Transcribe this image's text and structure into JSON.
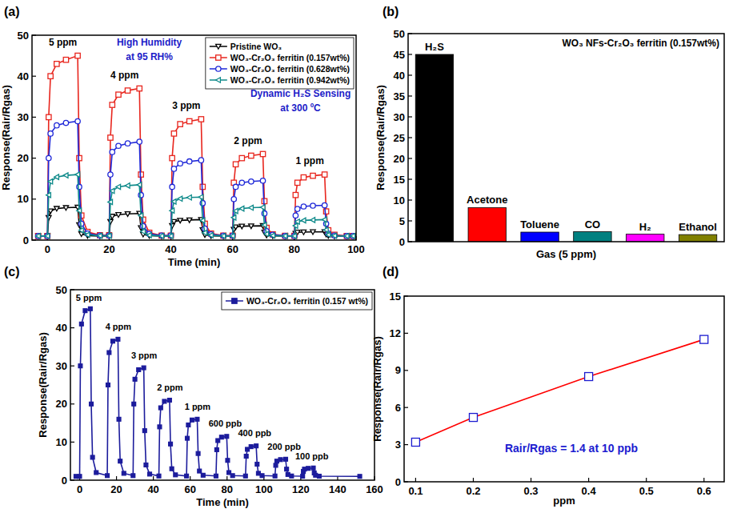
{
  "chart_data": [
    {
      "type": "line",
      "title": "(a)",
      "xlabel": "Time (min)",
      "ylabel": "Response(Rair/Rgas)",
      "xlim": [
        -5,
        100
      ],
      "ylim": [
        0,
        50
      ],
      "xticks": [
        0,
        20,
        40,
        60,
        80,
        100
      ],
      "yticks": [
        0,
        10,
        20,
        30,
        40,
        50
      ],
      "legend": "upper right",
      "x": [
        -3,
        0,
        0.4,
        1,
        3,
        6,
        9.8,
        10.3,
        11,
        13,
        17,
        20,
        20.4,
        21,
        23,
        26,
        29.8,
        30.3,
        31,
        33,
        37,
        40,
        40.4,
        41,
        43,
        46,
        49.8,
        50.3,
        51,
        53,
        57,
        60,
        60.4,
        61,
        63,
        66,
        69.8,
        70.3,
        71,
        73,
        77,
        80,
        80.4,
        81,
        83,
        86,
        89.8,
        90.3,
        91,
        93,
        97,
        99
      ],
      "series": [
        {
          "name": "Pristine WO₃",
          "color": "#000000",
          "marker": "open-triangle-down",
          "values": [
            1,
            1,
            5.5,
            7.1,
            7.7,
            7.9,
            8,
            3.7,
            1.5,
            1.1,
            1.0,
            1.0,
            4.5,
            5.8,
            6.2,
            6.4,
            6.5,
            3,
            1.4,
            1.1,
            1.0,
            1.0,
            3.5,
            4.5,
            4.8,
            4.9,
            5,
            2.5,
            1.3,
            1.05,
            1.0,
            1.0,
            2.6,
            3.2,
            3.4,
            3.45,
            3.5,
            1.9,
            1.2,
            1.05,
            1.0,
            1.0,
            1.6,
            1.9,
            1.95,
            2,
            2,
            1.4,
            1.1,
            1.0,
            1.0,
            1.0
          ]
        },
        {
          "name": "WO₃-Cr₂O₃ ferritin (0.157wt%)",
          "color": "#e8261e",
          "marker": "open-square",
          "values": [
            1,
            1,
            30,
            40,
            43,
            44,
            45,
            20,
            6,
            2,
            1.2,
            1.2,
            25,
            33,
            35.5,
            36.5,
            37,
            16,
            5,
            1.8,
            1.1,
            1.1,
            20,
            26,
            28.3,
            29,
            29.5,
            13,
            4,
            1.6,
            1.1,
            1.1,
            14,
            18.5,
            20,
            20.6,
            21,
            9.5,
            3,
            1.4,
            1.05,
            1.05,
            11,
            14,
            15.3,
            15.7,
            16,
            7,
            2.4,
            1.3,
            1.0,
            1.0
          ]
        },
        {
          "name": "WO₃-Cr₂O₃ ferritin (0.628wt%)",
          "color": "#1f28d8",
          "marker": "open-circle",
          "values": [
            1,
            1,
            20,
            26,
            28,
            28.6,
            29,
            13,
            4,
            1.6,
            1.1,
            1.1,
            16,
            21.5,
            23,
            23.6,
            24,
            11,
            3.4,
            1.5,
            1.1,
            1.1,
            13,
            17.4,
            18.7,
            19.2,
            19.5,
            9,
            2.8,
            1.4,
            1.05,
            1.05,
            10,
            13,
            14,
            14.3,
            14.5,
            6.5,
            2.2,
            1.3,
            1.0,
            1.0,
            6,
            7.6,
            8.2,
            8.4,
            8.5,
            4,
            1.6,
            1.1,
            1.0,
            1.0
          ]
        },
        {
          "name": "WO₃-Cr₂O₃ ferritin (0.942wt%)",
          "color": "#0e8a8a",
          "marker": "open-triangle-left",
          "values": [
            1,
            1,
            11,
            14.3,
            15.4,
            15.8,
            16,
            7.2,
            2.4,
            1.3,
            1.05,
            1.05,
            9.3,
            12,
            13,
            13.3,
            13.5,
            6,
            2.1,
            1.2,
            1.0,
            1.0,
            7.2,
            9.4,
            10.1,
            10.4,
            10.5,
            4.8,
            1.8,
            1.2,
            1.0,
            1.0,
            5.5,
            7.1,
            7.7,
            7.9,
            8,
            3.7,
            1.5,
            1.1,
            1.0,
            1.0,
            3.5,
            4.5,
            4.8,
            4.9,
            5,
            2.5,
            1.3,
            1.05,
            1.0,
            1.0
          ]
        }
      ],
      "annotations": [
        {
          "text": "5 ppm",
          "x": 5,
          "y": 47.5
        },
        {
          "text": "4 ppm",
          "x": 25,
          "y": 39.5
        },
        {
          "text": "3 ppm",
          "x": 45,
          "y": 32
        },
        {
          "text": "2 ppm",
          "x": 65,
          "y": 23.5
        },
        {
          "text": "1 ppm",
          "x": 85,
          "y": 18.5
        },
        {
          "text": "High Humidity",
          "x": 33,
          "y": 47.5,
          "color": "#1c1cc8"
        },
        {
          "text": "at 95 RH%",
          "x": 33,
          "y": 44,
          "color": "#1c1cc8"
        },
        {
          "text": "Dynamic H₂S Sensing",
          "x": 82,
          "y": 35,
          "color": "#1c1cc8"
        },
        {
          "text": "at 300 ºC",
          "x": 82,
          "y": 31.5,
          "color": "#1c1cc8"
        }
      ]
    },
    {
      "type": "bar",
      "title": "(b)",
      "subtitle": "WO₃ NFs-Cr₂O₃ ferritin (0.157wt%)",
      "xlabel": "Gas (5 ppm)",
      "ylabel": "Response(Rair/Rgas)",
      "categories": [
        "H₂S",
        "Acetone",
        "Toluene",
        "CO",
        "H₂",
        "Ethanol"
      ],
      "values": [
        45,
        8.2,
        2.3,
        2.4,
        1.8,
        1.7
      ],
      "colors": [
        "#000000",
        "#ff0000",
        "#0000ff",
        "#008080",
        "#ff00ff",
        "#808000"
      ],
      "ylim": [
        0,
        50
      ],
      "yticks": [
        0,
        5,
        10,
        15,
        20,
        25,
        30,
        35,
        40,
        45,
        50
      ]
    },
    {
      "type": "line",
      "title": "(c)",
      "xlabel": "Time (min)",
      "ylabel": "Response(Rair/Rgas)",
      "xlim": [
        -5,
        160
      ],
      "ylim": [
        0,
        50
      ],
      "xticks": [
        0,
        20,
        40,
        60,
        80,
        100,
        120,
        140,
        160
      ],
      "yticks": [
        0,
        10,
        20,
        30,
        40,
        50
      ],
      "legend": "upper right",
      "x": [
        -2,
        0,
        0.4,
        1,
        3,
        5.8,
        6.3,
        7,
        9,
        15,
        15.4,
        16,
        18,
        20.8,
        21.3,
        22,
        24,
        29,
        29.4,
        30,
        32,
        34.8,
        35.3,
        36,
        38,
        43,
        43.4,
        44,
        46,
        48.8,
        49.3,
        50,
        52,
        58,
        58.4,
        59,
        61,
        63.8,
        64.3,
        65,
        67,
        74,
        74.4,
        75,
        77,
        79.8,
        80.3,
        81,
        83,
        90,
        90.4,
        91,
        93,
        95.8,
        96.3,
        97,
        99,
        106,
        106.4,
        107,
        109,
        111.8,
        112.3,
        113,
        115,
        121,
        121.4,
        122,
        124,
        126.8,
        127.3,
        128,
        130,
        152
      ],
      "series": [
        {
          "name": "WO₃-Cr₂O₃ ferritin (0.157 wt%)",
          "color": "#1c1c9c",
          "marker": "square",
          "values": [
            1,
            1,
            30,
            41,
            44.5,
            45,
            20,
            6,
            2,
            1.2,
            25,
            33.5,
            36.5,
            37,
            16,
            5,
            1.8,
            1.2,
            20,
            26.5,
            29,
            29.5,
            13,
            4,
            1.6,
            1.1,
            14,
            19,
            20.7,
            21,
            9.5,
            3,
            1.4,
            1.1,
            11,
            14.5,
            15.8,
            16,
            7,
            2.4,
            1.3,
            1.1,
            8,
            10.4,
            11.3,
            11.5,
            5.2,
            2,
            1.2,
            1.1,
            6.3,
            8.1,
            8.8,
            9,
            4.2,
            1.8,
            1.2,
            1.1,
            3.9,
            5,
            5.4,
            5.5,
            2.9,
            1.5,
            1.1,
            1.05,
            2.3,
            2.9,
            3.1,
            3.2,
            1.9,
            1.3,
            1.05,
            1.0
          ]
        }
      ],
      "annotations": [
        {
          "text": "5 ppm",
          "x": 5,
          "y": 47
        },
        {
          "text": "4 ppm",
          "x": 21,
          "y": 39.5
        },
        {
          "text": "3 ppm",
          "x": 35,
          "y": 32
        },
        {
          "text": "2 ppm",
          "x": 49,
          "y": 23.5
        },
        {
          "text": "1 ppm",
          "x": 64,
          "y": 18.5
        },
        {
          "text": "600 ppb",
          "x": 79,
          "y": 14
        },
        {
          "text": "400 ppb",
          "x": 95,
          "y": 11.5
        },
        {
          "text": "200 ppb",
          "x": 111,
          "y": 8
        },
        {
          "text": "100 ppb",
          "x": 126,
          "y": 5.5
        }
      ]
    },
    {
      "type": "scatter",
      "title": "(d)",
      "xlabel": "ppm",
      "ylabel": "Response(Rair/Rgas)",
      "xlim": [
        0.08,
        0.635
      ],
      "ylim": [
        0,
        15
      ],
      "xticks": [
        0.1,
        0.2,
        0.3,
        0.4,
        0.5,
        0.6
      ],
      "yticks": [
        0,
        3,
        6,
        9,
        12,
        15
      ],
      "x": [
        0.1,
        0.2,
        0.4,
        0.6
      ],
      "series": [
        {
          "type": "line",
          "color": "#ff0000",
          "values": [
            3.2,
            5.2,
            8.5,
            11.5
          ]
        },
        {
          "type": "scatter",
          "color": "#1c1cd0",
          "marker": "open-square",
          "values": [
            3.2,
            5.2,
            8.5,
            11.5
          ]
        }
      ],
      "annotations": [
        {
          "text": "Rair/Rgas = 1.4 at 10 ppb",
          "x": 0.37,
          "y": 2.4,
          "color": "#1c1cd0"
        }
      ]
    }
  ]
}
